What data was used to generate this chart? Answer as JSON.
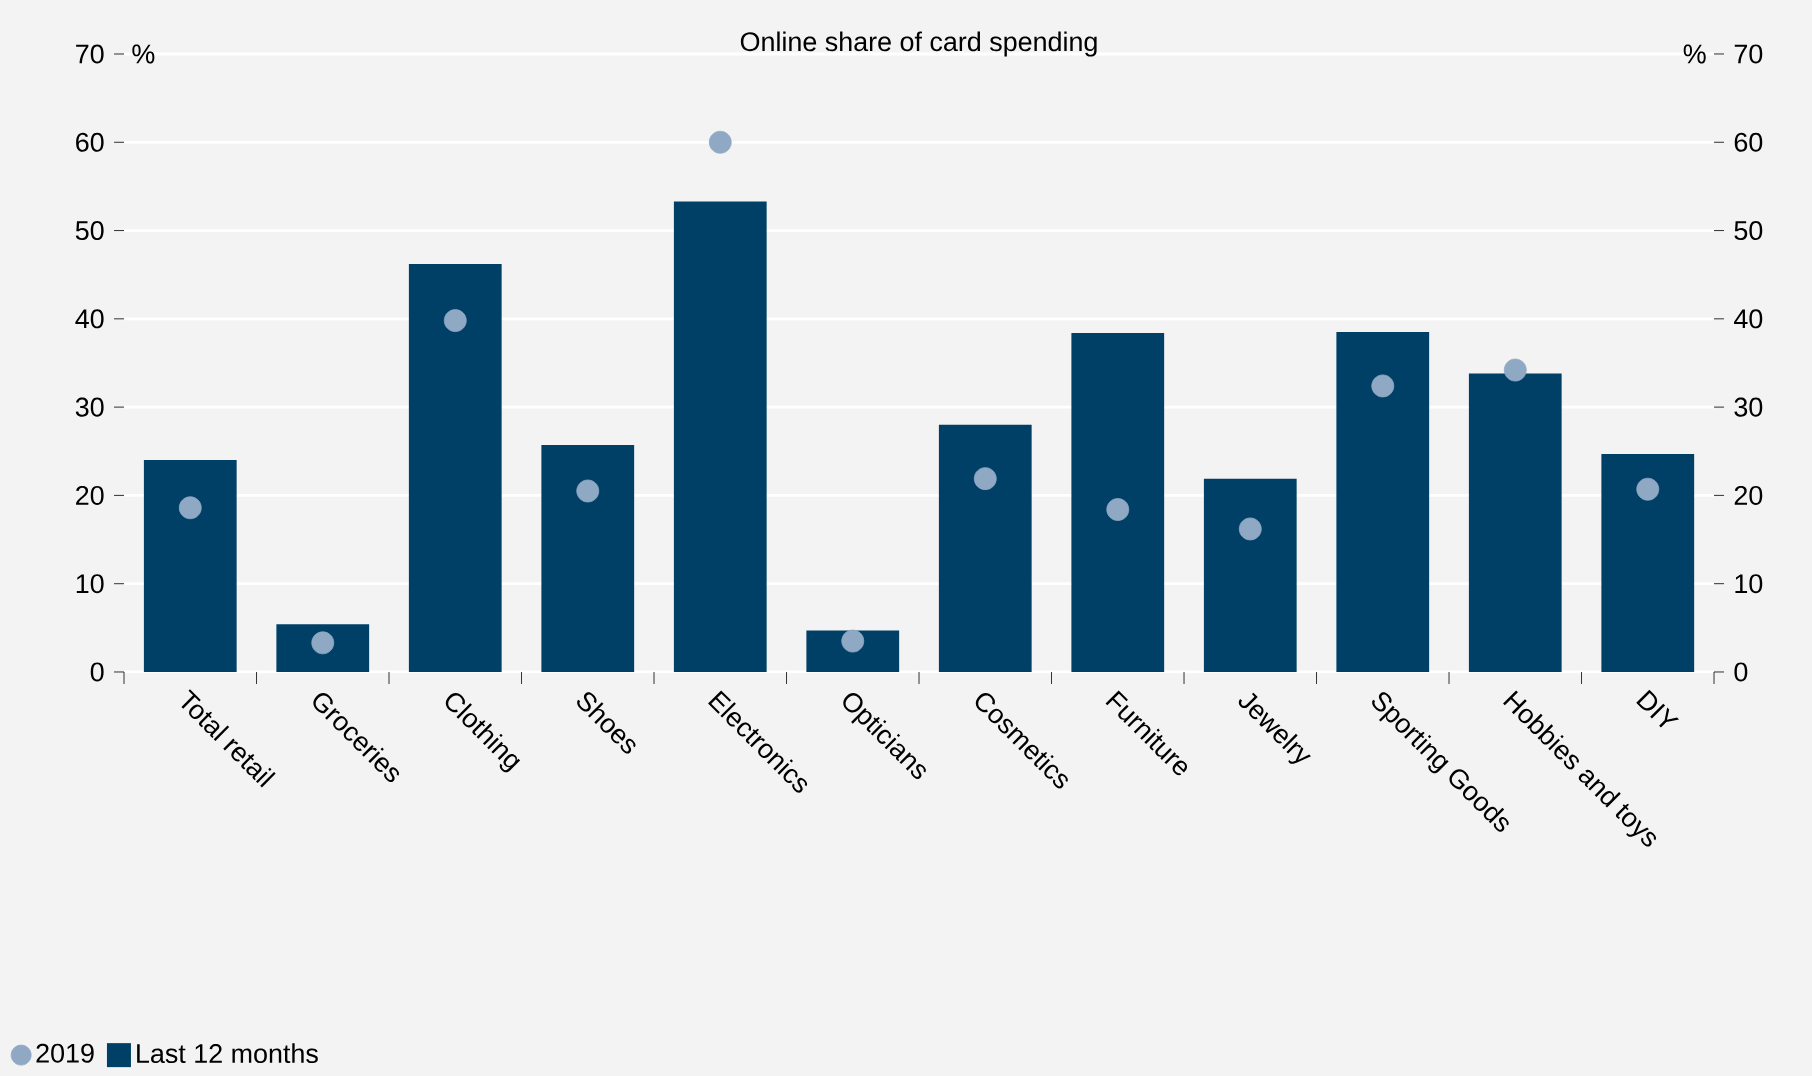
{
  "chart_data": {
    "type": "bar",
    "title": "Online share of card spending",
    "annotations": [
      "%",
      "%"
    ],
    "categories": [
      "Total retail",
      "Groceries",
      "Clothing",
      "Shoes",
      "Electronics",
      "Opticians",
      "Cosmetics",
      "Furniture",
      "Jewelry",
      "Sporting Goods",
      "Hobbies and toys",
      "DIY"
    ],
    "series": [
      {
        "name": "Last 12 months",
        "color": "#003f66",
        "values": [
          24.0,
          5.4,
          46.2,
          25.7,
          53.3,
          4.7,
          28.0,
          38.4,
          21.9,
          38.5,
          33.8,
          24.7
        ]
      },
      {
        "name": "2019",
        "type": "scatter",
        "color": "#8fa9c5",
        "values": [
          18.6,
          3.3,
          39.8,
          20.5,
          60.0,
          3.5,
          21.9,
          18.4,
          16.2,
          32.4,
          34.2,
          20.7
        ]
      }
    ],
    "ylim": [
      0,
      70
    ],
    "yticks": [
      0,
      10,
      20,
      30,
      40,
      50,
      60,
      70
    ],
    "y2lim": [
      0,
      70
    ],
    "y2ticks": [
      0,
      10,
      20,
      30,
      40,
      50,
      60,
      70
    ],
    "grid": "y",
    "legend": "bottom left",
    "marker": "circle"
  }
}
